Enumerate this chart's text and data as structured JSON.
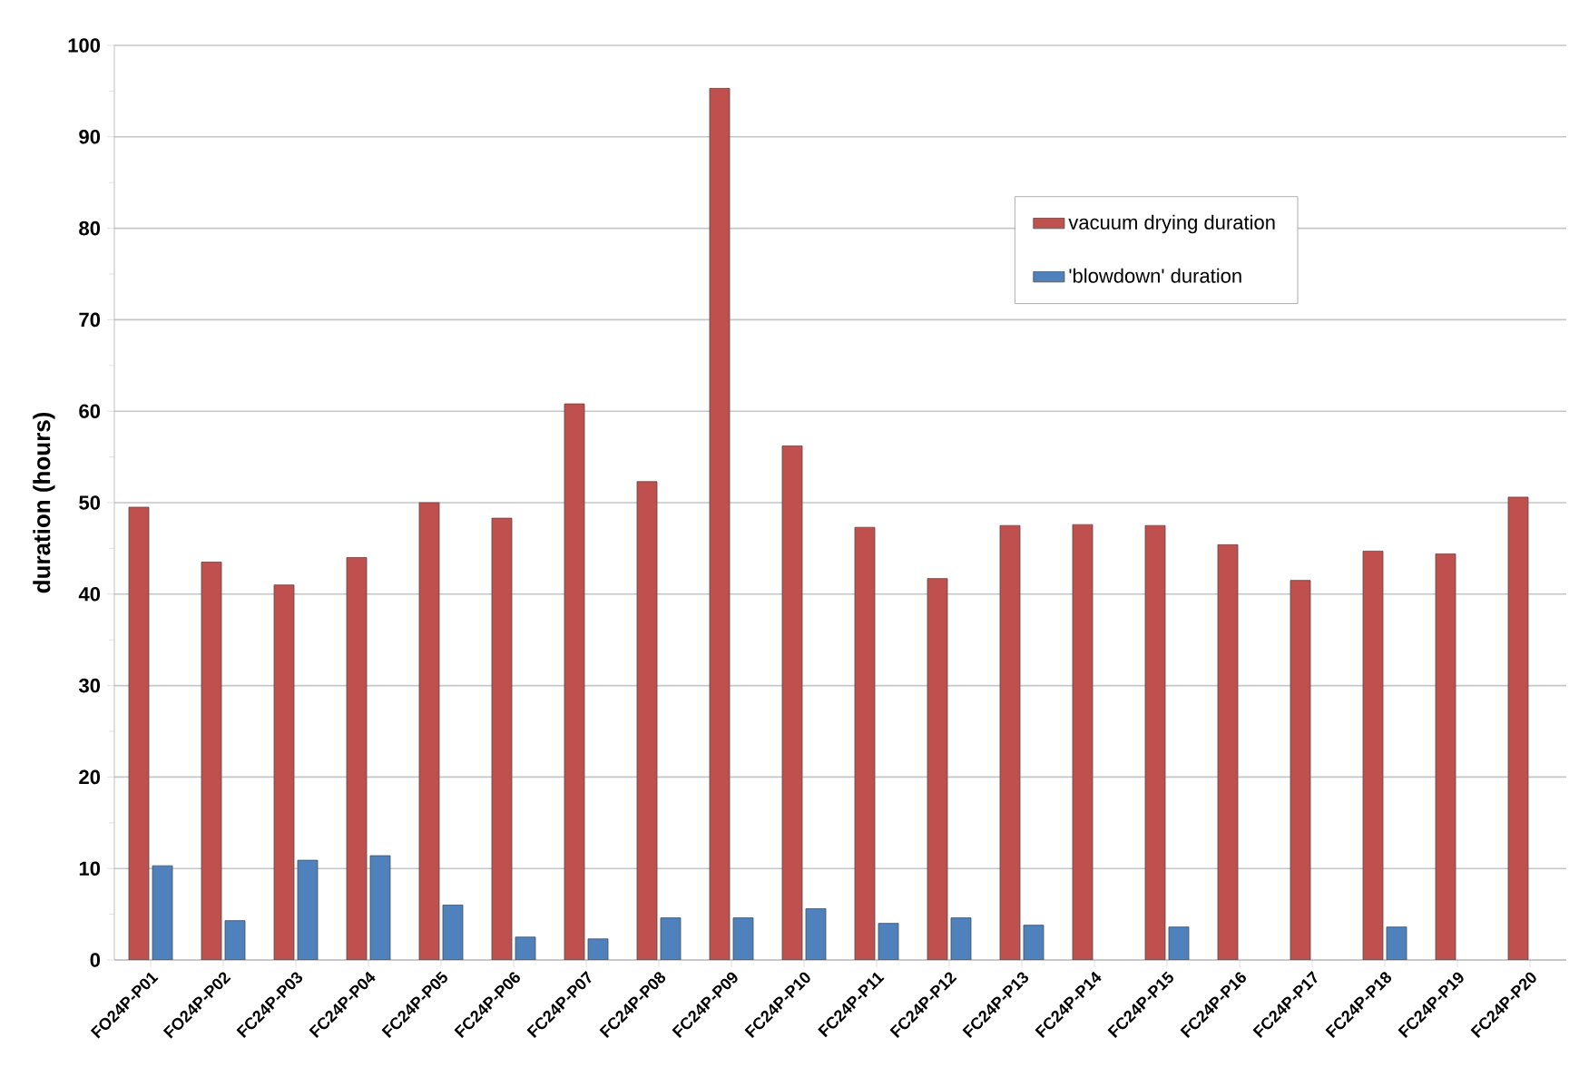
{
  "chart_data": {
    "type": "bar",
    "ylabel": "duration (hours)",
    "categories": [
      "FO24P-P01",
      "FO24P-P02",
      "FC24P-P03",
      "FC24P-P04",
      "FC24P-P05",
      "FC24P-P06",
      "FC24P-P07",
      "FC24P-P08",
      "FC24P-P09",
      "FC24P-P10",
      "FC24P-P11",
      "FC24P-P12",
      "FC24P-P13",
      "FC24P-P14",
      "FC24P-P15",
      "FC24P-P16",
      "FC24P-P17",
      "FC24P-P18",
      "FC24P-P19",
      "FC24P-P20"
    ],
    "series": [
      {
        "name": "vacuum drying duration",
        "color": "#c0504d",
        "values": [
          49.5,
          43.5,
          41,
          44,
          50,
          48.3,
          60.8,
          52.3,
          95.3,
          56.2,
          47.3,
          41.7,
          47.5,
          47.6,
          47.5,
          45.4,
          41.5,
          44.7,
          44.4,
          50.6
        ]
      },
      {
        "name": "'blowdown' duration",
        "color": "#4f81bd",
        "values": [
          10.3,
          4.3,
          10.9,
          11.4,
          6,
          2.5,
          2.3,
          4.6,
          4.6,
          5.6,
          4,
          4.6,
          3.8,
          null,
          3.6,
          null,
          null,
          3.6,
          null,
          null
        ]
      }
    ],
    "ylim": [
      0,
      100
    ],
    "yticks": [
      0,
      10,
      20,
      30,
      40,
      50,
      60,
      70,
      80,
      90,
      100
    ],
    "grid": "y",
    "legend": "top right"
  }
}
